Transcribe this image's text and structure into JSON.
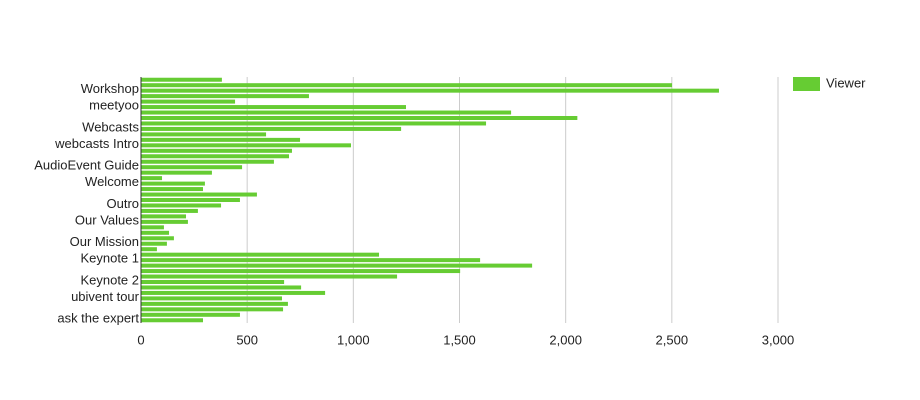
{
  "chart_data": {
    "type": "hbar",
    "categories": [
      null,
      null,
      "Workshop",
      null,
      null,
      "meetyoo",
      null,
      null,
      null,
      "Webcasts",
      null,
      null,
      "webcasts Intro",
      null,
      null,
      null,
      "AudioEvent Guide",
      null,
      null,
      "Welcome",
      null,
      null,
      null,
      "Outro",
      null,
      null,
      "Our Values",
      null,
      null,
      null,
      "Our Mission",
      null,
      null,
      "Keynote 1",
      null,
      null,
      null,
      "Keynote 2",
      null,
      null,
      "ubivent tour",
      null,
      null,
      null,
      "ask the expert"
    ],
    "series": [
      {
        "name": "Viewer",
        "color": "#66cc33",
        "values": [
          381,
          2501,
          2722,
          791,
          443,
          1248,
          1743,
          2055,
          1625,
          1225,
          589,
          749,
          989,
          711,
          697,
          626,
          476,
          334,
          99,
          301,
          292,
          546,
          466,
          377,
          268,
          212,
          221,
          108,
          132,
          155,
          122,
          75,
          1121,
          1597,
          1842,
          1503,
          1206,
          674,
          754,
          867,
          664,
          692,
          669,
          466,
          292
        ]
      }
    ],
    "xlim": [
      0,
      3000
    ],
    "xticks": [
      0,
      500,
      {
        "value": 1000,
        "label": "1,000"
      },
      {
        "value": 1500,
        "label": "1,500"
      },
      {
        "value": 2000,
        "label": "2,000"
      },
      {
        "value": 2500,
        "label": "2,500"
      },
      {
        "value": 3000,
        "label": "3,000"
      }
    ],
    "grid": true,
    "legend": "right"
  }
}
